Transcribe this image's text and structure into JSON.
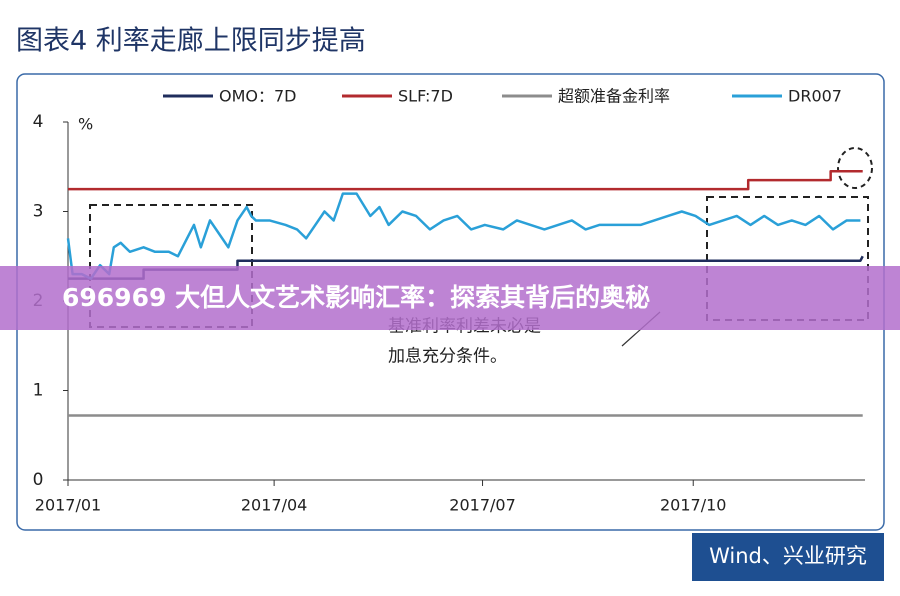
{
  "title": "图表4  利率走廊上限同步提高",
  "banner": "696969 大但人文艺术影响汇率：探索其背后的奥秘",
  "source": "Wind、兴业研究",
  "chart_data": {
    "type": "line",
    "y_label": "%",
    "annotations": [
      "基准利率利差未必是",
      "加息充分条件。"
    ],
    "xlim": [
      0,
      348
    ],
    "xticks": [
      {
        "value": 0,
        "label": "2017/01"
      },
      {
        "value": 90,
        "label": "2017/04"
      },
      {
        "value": 181,
        "label": "2017/07"
      },
      {
        "value": 273,
        "label": "2017/10"
      }
    ],
    "ylim": [
      0,
      4
    ],
    "yticks": [
      0,
      1,
      2,
      3,
      4
    ],
    "series": [
      {
        "name": "OMO：7D",
        "color": "#1f2d5c",
        "x": [
          0,
          33,
          33,
          74,
          74,
          346,
          347
        ],
        "values": [
          2.25,
          2.25,
          2.35,
          2.35,
          2.45,
          2.45,
          2.5
        ]
      },
      {
        "name": "SLF:7D",
        "color": "#b22a2e",
        "x": [
          0,
          297,
          297,
          333,
          333,
          347
        ],
        "values": [
          3.25,
          3.25,
          3.35,
          3.35,
          3.45,
          3.45
        ]
      },
      {
        "name": "超额准备金利率",
        "color": "#8c8c8c",
        "x": [
          0,
          347
        ],
        "values": [
          0.72,
          0.72
        ]
      },
      {
        "name": "DR007",
        "color": "#2aa0d8",
        "x": [
          0,
          2,
          6,
          10,
          14,
          18,
          20,
          23,
          27,
          33,
          38,
          44,
          48,
          52,
          55,
          58,
          62,
          66,
          70,
          74,
          78,
          80,
          82,
          88,
          95,
          100,
          104,
          108,
          112,
          116,
          120,
          126,
          132,
          136,
          140,
          146,
          152,
          158,
          164,
          170,
          176,
          182,
          190,
          196,
          202,
          208,
          214,
          220,
          226,
          232,
          238,
          244,
          250,
          256,
          262,
          268,
          274,
          280,
          286,
          292,
          298,
          304,
          310,
          316,
          322,
          328,
          334,
          340,
          346
        ],
        "values": [
          2.7,
          2.3,
          2.3,
          2.25,
          2.4,
          2.3,
          2.6,
          2.65,
          2.55,
          2.6,
          2.55,
          2.55,
          2.5,
          2.7,
          2.85,
          2.6,
          2.9,
          2.75,
          2.6,
          2.9,
          3.05,
          2.95,
          2.9,
          2.9,
          2.85,
          2.8,
          2.7,
          2.85,
          3.0,
          2.9,
          3.2,
          3.2,
          2.95,
          3.05,
          2.85,
          3.0,
          2.95,
          2.8,
          2.9,
          2.95,
          2.8,
          2.85,
          2.8,
          2.9,
          2.85,
          2.8,
          2.85,
          2.9,
          2.8,
          2.85,
          2.85,
          2.85,
          2.85,
          2.9,
          2.95,
          3.0,
          2.95,
          2.85,
          2.9,
          2.95,
          2.85,
          2.95,
          2.85,
          2.9,
          2.85,
          2.95,
          2.8,
          2.9,
          2.9
        ]
      }
    ]
  }
}
